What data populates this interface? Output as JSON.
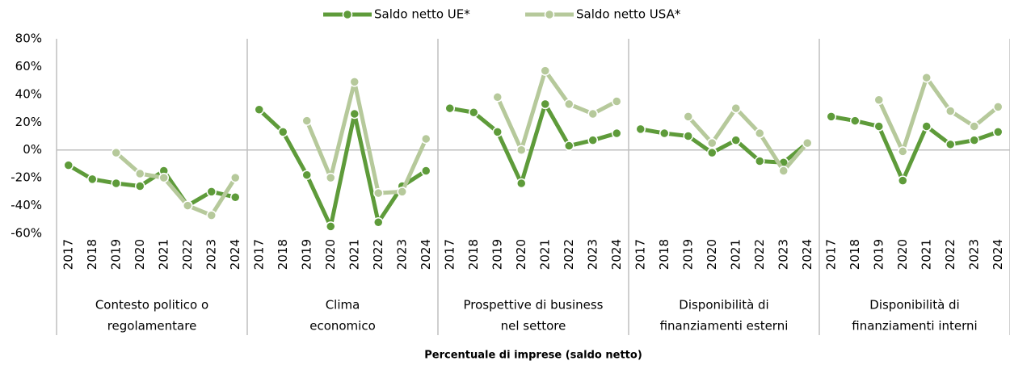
{
  "chart_data": {
    "type": "line",
    "xlabel": "Percentuale di imprese (saldo netto)",
    "ylim": [
      -60,
      80
    ],
    "yticks": [
      {
        "value": -60,
        "label": "-60%"
      },
      {
        "value": -40,
        "label": "-40%"
      },
      {
        "value": -20,
        "label": "-20%"
      },
      {
        "value": 0,
        "label": "0%"
      },
      {
        "value": 20,
        "label": "20%"
      },
      {
        "value": 40,
        "label": "40%"
      },
      {
        "value": 60,
        "label": "60%"
      },
      {
        "value": 80,
        "label": "80%"
      }
    ],
    "groups": [
      {
        "name": [
          "Contesto politico o",
          "regolamentare"
        ],
        "categories": [
          "2017",
          "2018",
          "2019",
          "2020",
          "2021",
          "2022",
          "2023",
          "2024"
        ]
      },
      {
        "name": [
          "Clima",
          "economico"
        ],
        "categories": [
          "2017",
          "2018",
          "2019",
          "2020",
          "2021",
          "2022",
          "2023",
          "2024"
        ]
      },
      {
        "name": [
          "Prospettive di business",
          "nel settore"
        ],
        "categories": [
          "2017",
          "2018",
          "2019",
          "2020",
          "2021",
          "2022",
          "2023",
          "2024"
        ]
      },
      {
        "name": [
          "Disponibilità di",
          "finanziamenti esterni"
        ],
        "categories": [
          "2017",
          "2018",
          "2019",
          "2020",
          "2021",
          "2022",
          "2023",
          "2024"
        ]
      },
      {
        "name": [
          "Disponibilità di",
          "finanziamenti interni"
        ],
        "categories": [
          "2017",
          "2018",
          "2019",
          "2020",
          "2021",
          "2022",
          "2023",
          "2024"
        ]
      }
    ],
    "series": [
      {
        "name": "Saldo netto UE*",
        "color": "#5e9b3a",
        "values": [
          [
            -11,
            -21,
            -24,
            -26,
            -15,
            -40,
            -30,
            -34
          ],
          [
            29,
            13,
            -18,
            -55,
            26,
            -52,
            -26,
            -15
          ],
          [
            30,
            27,
            13,
            -24,
            33,
            3,
            7,
            12
          ],
          [
            15,
            12,
            10,
            -2,
            7,
            -8,
            -9,
            5
          ],
          [
            24,
            21,
            17,
            -22,
            17,
            4,
            7,
            13
          ]
        ]
      },
      {
        "name": "Saldo netto USA*",
        "color": "#b6c99b",
        "values": [
          [
            null,
            null,
            -2,
            -17,
            -20,
            -40,
            -47,
            -20
          ],
          [
            null,
            null,
            21,
            -20,
            49,
            -31,
            -30,
            8
          ],
          [
            null,
            null,
            38,
            0,
            57,
            33,
            26,
            35
          ],
          [
            null,
            null,
            24,
            5,
            30,
            12,
            -15,
            5
          ],
          [
            null,
            null,
            36,
            -1,
            52,
            28,
            17,
            31
          ]
        ]
      }
    ]
  }
}
